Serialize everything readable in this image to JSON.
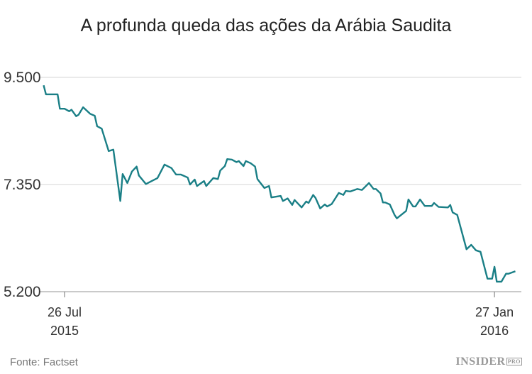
{
  "chart_data": {
    "type": "line",
    "title": "A profunda queda das ações da Arábia Saudita",
    "source": "Fonte: Factset",
    "logo": {
      "main": "INSIDER",
      "sub": "PRO"
    },
    "line_color": "#1a7f86",
    "grid": true,
    "ylim": [
      5200,
      9500
    ],
    "yticks": [
      {
        "value": 9500,
        "label": "9.500"
      },
      {
        "value": 7350,
        "label": "7.350"
      },
      {
        "value": 5200,
        "label": "5.200"
      }
    ],
    "xlim": [
      "2015-07-17",
      "2016-02-08"
    ],
    "xticks": [
      {
        "date": "2015-07-26",
        "label": "26 Jul",
        "year": "2015"
      },
      {
        "date": "2016-01-27",
        "label": "27 Jan",
        "year": "2016"
      }
    ],
    "points": [
      [
        "2015-07-17",
        9340
      ],
      [
        "2015-07-18",
        9160
      ],
      [
        "2015-07-23",
        9160
      ],
      [
        "2015-07-24",
        8870
      ],
      [
        "2015-07-26",
        8870
      ],
      [
        "2015-07-28",
        8820
      ],
      [
        "2015-07-29",
        8850
      ],
      [
        "2015-07-31",
        8720
      ],
      [
        "2015-08-01",
        8750
      ],
      [
        "2015-08-03",
        8900
      ],
      [
        "2015-08-06",
        8770
      ],
      [
        "2015-08-08",
        8730
      ],
      [
        "2015-08-09",
        8520
      ],
      [
        "2015-08-11",
        8470
      ],
      [
        "2015-08-14",
        8020
      ],
      [
        "2015-08-16",
        8050
      ],
      [
        "2015-08-19",
        7020
      ],
      [
        "2015-08-20",
        7560
      ],
      [
        "2015-08-22",
        7380
      ],
      [
        "2015-08-24",
        7610
      ],
      [
        "2015-08-26",
        7710
      ],
      [
        "2015-08-27",
        7530
      ],
      [
        "2015-08-30",
        7360
      ],
      [
        "2015-09-04",
        7480
      ],
      [
        "2015-09-07",
        7750
      ],
      [
        "2015-09-10",
        7680
      ],
      [
        "2015-09-12",
        7550
      ],
      [
        "2015-09-14",
        7550
      ],
      [
        "2015-09-17",
        7490
      ],
      [
        "2015-09-18",
        7350
      ],
      [
        "2015-09-20",
        7450
      ],
      [
        "2015-09-21",
        7320
      ],
      [
        "2015-09-24",
        7420
      ],
      [
        "2015-09-25",
        7320
      ],
      [
        "2015-09-28",
        7480
      ],
      [
        "2015-09-30",
        7460
      ],
      [
        "2015-10-01",
        7630
      ],
      [
        "2015-10-03",
        7720
      ],
      [
        "2015-10-04",
        7860
      ],
      [
        "2015-10-06",
        7850
      ],
      [
        "2015-10-08",
        7800
      ],
      [
        "2015-10-09",
        7820
      ],
      [
        "2015-10-11",
        7720
      ],
      [
        "2015-10-12",
        7820
      ],
      [
        "2015-10-14",
        7780
      ],
      [
        "2015-10-16",
        7710
      ],
      [
        "2015-10-17",
        7460
      ],
      [
        "2015-10-20",
        7280
      ],
      [
        "2015-10-22",
        7320
      ],
      [
        "2015-10-23",
        7090
      ],
      [
        "2015-10-27",
        7120
      ],
      [
        "2015-10-28",
        7020
      ],
      [
        "2015-10-30",
        7070
      ],
      [
        "2015-11-01",
        6940
      ],
      [
        "2015-11-02",
        7040
      ],
      [
        "2015-11-05",
        6890
      ],
      [
        "2015-11-07",
        7010
      ],
      [
        "2015-11-08",
        6980
      ],
      [
        "2015-11-10",
        7140
      ],
      [
        "2015-11-11",
        7080
      ],
      [
        "2015-11-13",
        6870
      ],
      [
        "2015-11-15",
        6950
      ],
      [
        "2015-11-16",
        6910
      ],
      [
        "2015-11-18",
        6960
      ],
      [
        "2015-11-21",
        7180
      ],
      [
        "2015-11-23",
        7140
      ],
      [
        "2015-11-24",
        7220
      ],
      [
        "2015-11-26",
        7210
      ],
      [
        "2015-11-29",
        7260
      ],
      [
        "2015-12-01",
        7240
      ],
      [
        "2015-12-04",
        7380
      ],
      [
        "2015-12-06",
        7260
      ],
      [
        "2015-12-07",
        7260
      ],
      [
        "2015-12-09",
        7170
      ],
      [
        "2015-12-10",
        6990
      ],
      [
        "2015-12-11",
        6990
      ],
      [
        "2015-12-13",
        6950
      ],
      [
        "2015-12-15",
        6740
      ],
      [
        "2015-12-16",
        6670
      ],
      [
        "2015-12-20",
        6820
      ],
      [
        "2015-12-21",
        7050
      ],
      [
        "2015-12-23",
        6910
      ],
      [
        "2015-12-24",
        6910
      ],
      [
        "2015-12-26",
        7050
      ],
      [
        "2015-12-28",
        6920
      ],
      [
        "2015-12-31",
        6920
      ],
      [
        "2016-01-01",
        6980
      ],
      [
        "2016-01-03",
        6900
      ],
      [
        "2016-01-07",
        6890
      ],
      [
        "2016-01-08",
        6940
      ],
      [
        "2016-01-09",
        6790
      ],
      [
        "2016-01-11",
        6740
      ],
      [
        "2016-01-15",
        6050
      ],
      [
        "2016-01-17",
        6140
      ],
      [
        "2016-01-19",
        6030
      ],
      [
        "2016-01-21",
        6000
      ],
      [
        "2016-01-24",
        5460
      ],
      [
        "2016-01-26",
        5460
      ],
      [
        "2016-01-27",
        5700
      ],
      [
        "2016-01-28",
        5400
      ],
      [
        "2016-01-30",
        5400
      ],
      [
        "2016-02-01",
        5560
      ],
      [
        "2016-02-02",
        5560
      ],
      [
        "2016-02-05",
        5610
      ]
    ]
  }
}
